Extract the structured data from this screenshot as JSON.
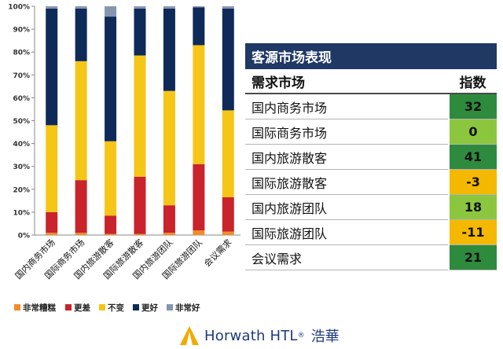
{
  "chart_data": {
    "type": "bar",
    "stacked": true,
    "categories": [
      "国内商务市场",
      "国际商务市场",
      "国内旅游散客",
      "国际旅游散客",
      "国内旅游团队",
      "国际旅游团队",
      "会议需求"
    ],
    "series": [
      {
        "name": "非常糟糕",
        "color": "#f28c28",
        "values": [
          1,
          1,
          0.5,
          0.5,
          1,
          2,
          1.5
        ]
      },
      {
        "name": "更差",
        "color": "#c9232b",
        "values": [
          9,
          23,
          8,
          25,
          12,
          29,
          15
        ]
      },
      {
        "name": "不变",
        "color": "#f5c518",
        "values": [
          38,
          52,
          32.5,
          53,
          50,
          52,
          38
        ]
      },
      {
        "name": "更好",
        "color": "#0e2a58",
        "values": [
          51,
          23,
          54.5,
          20.5,
          36,
          16.5,
          44.5
        ]
      },
      {
        "name": "非常好",
        "color": "#8496b0",
        "values": [
          1,
          1,
          4.5,
          1,
          1,
          0.5,
          1
        ]
      }
    ],
    "yticks": [
      "0%",
      "10%",
      "20%",
      "30%",
      "40%",
      "50%",
      "60%",
      "70%",
      "80%",
      "90%",
      "100%"
    ],
    "ylim": [
      0,
      100
    ],
    "grid": false,
    "legend": "bottom"
  },
  "table": {
    "title": "客源市场表现",
    "col1": "需求市场",
    "col2": "指数",
    "rows": [
      {
        "name": "国内商务市场",
        "value": "32",
        "color": "#2e8b3e"
      },
      {
        "name": "国际商务市场",
        "value": "0",
        "color": "#8cc63f"
      },
      {
        "name": "国内旅游散客",
        "value": "41",
        "color": "#2e8b3e"
      },
      {
        "name": "国际旅游散客",
        "value": "-3",
        "color": "#f5b800"
      },
      {
        "name": "国内旅游团队",
        "value": "18",
        "color": "#8cc63f"
      },
      {
        "name": "国际旅游团队",
        "value": "-11",
        "color": "#f5b800"
      },
      {
        "name": "会议需求",
        "value": "21",
        "color": "#2e8b3e"
      }
    ]
  },
  "logo": {
    "brand": "Horwath HTL",
    "mark": "®",
    "chinese": "浩華"
  }
}
